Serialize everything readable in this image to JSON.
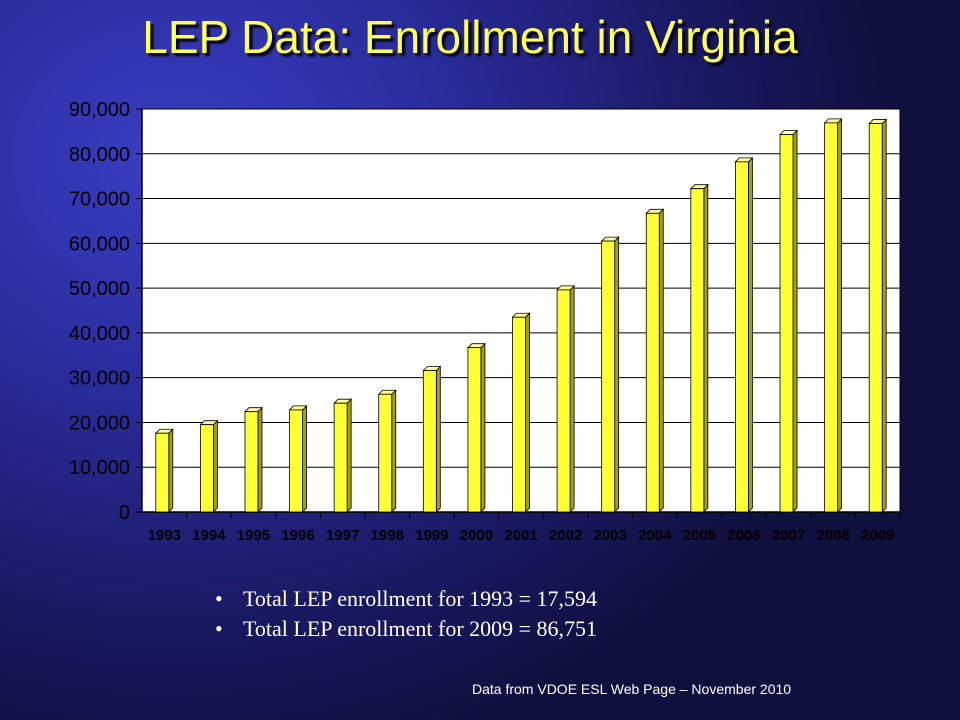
{
  "title": "LEP Data: Enrollment in Virginia",
  "bullets": [
    "Total LEP enrollment for 1993 = 17,594",
    "Total LEP enrollment for 2009 = 86,751"
  ],
  "bullet_glyph": "•",
  "source_note": "Data from VDOE ESL Web Page – November 2010",
  "colors": {
    "title": "#ffff55",
    "bar_front": "#ffff33",
    "bar_side": "#a0a020",
    "bar_top": "#ffff99",
    "plot_background": "#ffffff"
  },
  "chart_data": {
    "type": "bar",
    "categories": [
      "1993",
      "1994",
      "1995",
      "1996",
      "1997",
      "1998",
      "1999",
      "2000",
      "2001",
      "2002",
      "2003",
      "2004",
      "2005",
      "2006",
      "2007",
      "2008",
      "2009"
    ],
    "values": [
      17594,
      19500,
      22400,
      22800,
      24300,
      26300,
      31600,
      36700,
      43500,
      49600,
      60500,
      66700,
      72200,
      78200,
      84300,
      86900,
      86751
    ],
    "y_tick_labels": [
      "0",
      "10,000",
      "20,000",
      "30,000",
      "40,000",
      "50,000",
      "60,000",
      "70,000",
      "80,000",
      "90,000"
    ],
    "ylim": [
      0,
      90000
    ],
    "y_tick_step": 10000,
    "grid": true,
    "legend": "none",
    "title": "",
    "xlabel": "",
    "ylabel": ""
  }
}
